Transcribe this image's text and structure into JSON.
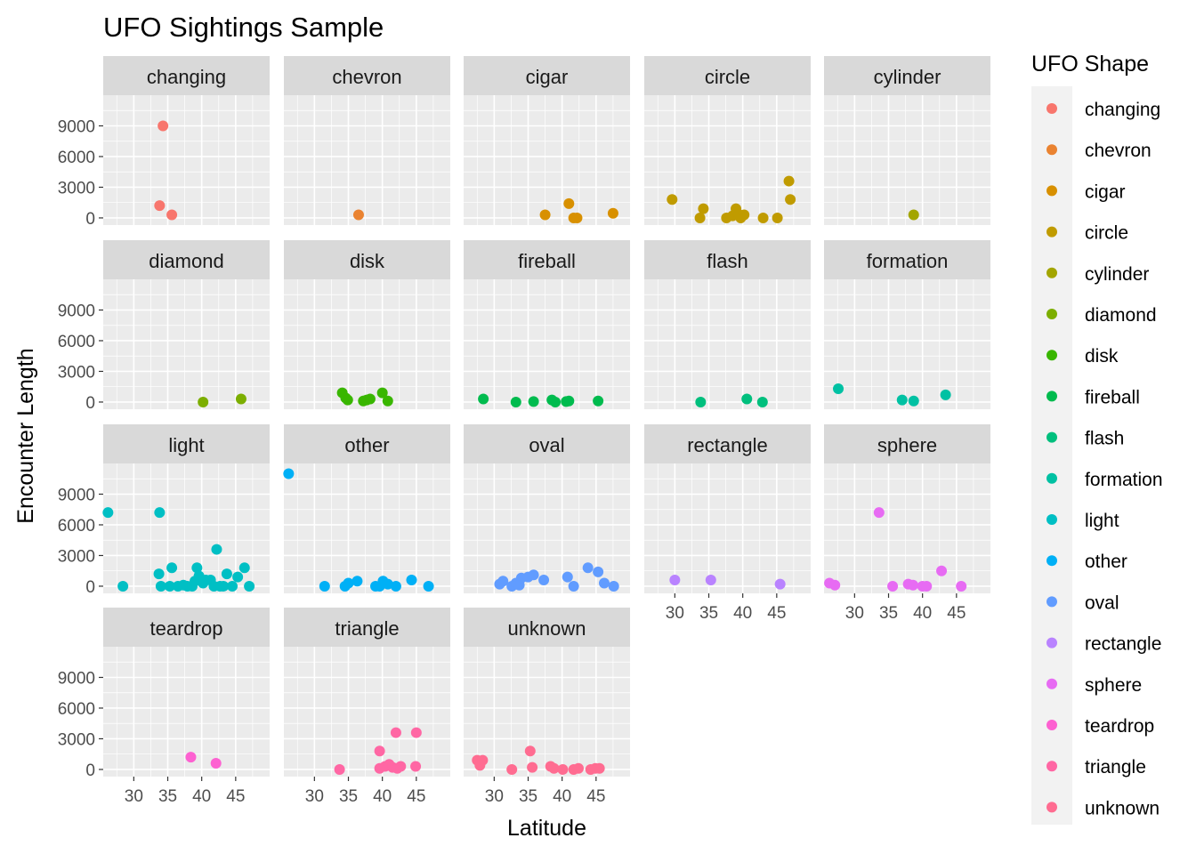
{
  "chart_data": {
    "type": "scatter",
    "title": "UFO Sightings Sample",
    "xlabel": "Latitude",
    "ylabel": "Encounter Length",
    "xlim": [
      25.5,
      50.0
    ],
    "ylim": [
      -700,
      12000
    ],
    "x_ticks": [
      30,
      35,
      40,
      45
    ],
    "y_ticks": [
      0,
      3000,
      6000,
      9000
    ],
    "x_tick_labels": [
      "30",
      "35",
      "40",
      "45"
    ],
    "y_tick_labels": [
      "0",
      "3000",
      "6000",
      "9000"
    ],
    "grid": true,
    "facet_by": "shape",
    "facet_columns": 5,
    "legend": {
      "title": "UFO Shape",
      "position": "right"
    },
    "series": [
      {
        "name": "changing",
        "color": "#F8766D",
        "points": [
          [
            34.3,
            9000
          ],
          [
            33.8,
            1200
          ],
          [
            35.6,
            300
          ]
        ]
      },
      {
        "name": "chevron",
        "color": "#EA8331",
        "points": [
          [
            36.5,
            300
          ]
        ]
      },
      {
        "name": "cigar",
        "color": "#D89000",
        "points": [
          [
            37.5,
            300
          ],
          [
            41.0,
            1400
          ],
          [
            41.7,
            0
          ],
          [
            42.2,
            0
          ],
          [
            47.5,
            450
          ]
        ]
      },
      {
        "name": "circle",
        "color": "#C09B00",
        "points": [
          [
            29.6,
            1800
          ],
          [
            33.7,
            0
          ],
          [
            34.2,
            900
          ],
          [
            37.6,
            0
          ],
          [
            38.5,
            200
          ],
          [
            39.0,
            900
          ],
          [
            39.3,
            400
          ],
          [
            39.7,
            0
          ],
          [
            40.2,
            300
          ],
          [
            43.0,
            0
          ],
          [
            45.1,
            0
          ],
          [
            46.8,
            3600
          ],
          [
            47.0,
            1800
          ]
        ]
      },
      {
        "name": "cylinder",
        "color": "#A3A500",
        "points": [
          [
            38.7,
            300
          ]
        ]
      },
      {
        "name": "diamond",
        "color": "#7CAE00",
        "points": [
          [
            40.2,
            0
          ],
          [
            45.8,
            300
          ]
        ]
      },
      {
        "name": "disk",
        "color": "#39B600",
        "points": [
          [
            34.1,
            900
          ],
          [
            34.6,
            400
          ],
          [
            34.9,
            200
          ],
          [
            37.2,
            100
          ],
          [
            37.7,
            200
          ],
          [
            38.2,
            300
          ],
          [
            40.0,
            900
          ],
          [
            40.8,
            100
          ]
        ]
      },
      {
        "name": "fireball",
        "color": "#00BB4E",
        "points": [
          [
            28.4,
            300
          ],
          [
            33.2,
            0
          ],
          [
            35.8,
            50
          ],
          [
            38.5,
            200
          ],
          [
            39.0,
            0
          ],
          [
            40.6,
            50
          ],
          [
            41.0,
            100
          ],
          [
            45.3,
            100
          ]
        ]
      },
      {
        "name": "flash",
        "color": "#00BF7D",
        "points": [
          [
            33.8,
            0
          ],
          [
            40.6,
            300
          ],
          [
            42.9,
            0
          ]
        ]
      },
      {
        "name": "formation",
        "color": "#00C1A3",
        "points": [
          [
            27.6,
            1300
          ],
          [
            37.0,
            200
          ],
          [
            38.7,
            100
          ],
          [
            43.4,
            700
          ]
        ]
      },
      {
        "name": "light",
        "color": "#00BFC4",
        "points": [
          [
            26.2,
            7200
          ],
          [
            28.4,
            0
          ],
          [
            33.8,
            7200
          ],
          [
            33.7,
            1200
          ],
          [
            34.0,
            0
          ],
          [
            35.3,
            0
          ],
          [
            35.6,
            1800
          ],
          [
            36.5,
            0
          ],
          [
            37.3,
            100
          ],
          [
            37.9,
            0
          ],
          [
            38.6,
            0
          ],
          [
            39.0,
            500
          ],
          [
            39.3,
            1800
          ],
          [
            39.6,
            1000
          ],
          [
            40.2,
            300
          ],
          [
            40.6,
            600
          ],
          [
            41.3,
            600
          ],
          [
            41.8,
            0
          ],
          [
            42.2,
            3600
          ],
          [
            42.7,
            0
          ],
          [
            43.2,
            0
          ],
          [
            43.7,
            1200
          ],
          [
            44.5,
            0
          ],
          [
            45.3,
            900
          ],
          [
            46.3,
            1800
          ],
          [
            47.0,
            0
          ]
        ]
      },
      {
        "name": "other",
        "color": "#00B0F6",
        "points": [
          [
            26.2,
            11000
          ],
          [
            31.5,
            0
          ],
          [
            34.5,
            0
          ],
          [
            35.0,
            300
          ],
          [
            36.3,
            500
          ],
          [
            39.0,
            0
          ],
          [
            39.6,
            0
          ],
          [
            40.1,
            500
          ],
          [
            40.8,
            200
          ],
          [
            42.0,
            0
          ],
          [
            44.3,
            600
          ],
          [
            46.8,
            0
          ]
        ]
      },
      {
        "name": "oval",
        "color": "#619CFF",
        "points": [
          [
            30.8,
            200
          ],
          [
            31.3,
            500
          ],
          [
            32.6,
            0
          ],
          [
            33.2,
            300
          ],
          [
            33.7,
            100
          ],
          [
            34.0,
            800
          ],
          [
            35.0,
            900
          ],
          [
            35.8,
            1100
          ],
          [
            37.3,
            600
          ],
          [
            40.8,
            900
          ],
          [
            41.7,
            0
          ],
          [
            43.8,
            1800
          ],
          [
            45.3,
            1400
          ],
          [
            46.2,
            300
          ],
          [
            47.6,
            0
          ]
        ]
      },
      {
        "name": "rectangle",
        "color": "#B983FF",
        "points": [
          [
            30.0,
            600
          ],
          [
            35.3,
            600
          ],
          [
            45.5,
            200
          ]
        ]
      },
      {
        "name": "sphere",
        "color": "#E76BF3",
        "points": [
          [
            26.3,
            300
          ],
          [
            27.1,
            100
          ],
          [
            33.6,
            7200
          ],
          [
            35.6,
            0
          ],
          [
            37.9,
            200
          ],
          [
            38.6,
            100
          ],
          [
            40.0,
            0
          ],
          [
            40.6,
            0
          ],
          [
            42.8,
            1500
          ],
          [
            45.7,
            0
          ]
        ]
      },
      {
        "name": "teardrop",
        "color": "#FD61D1",
        "points": [
          [
            38.4,
            1200
          ],
          [
            42.1,
            600
          ]
        ]
      },
      {
        "name": "triangle",
        "color": "#FF67A4",
        "points": [
          [
            33.7,
            0
          ],
          [
            39.6,
            1800
          ],
          [
            39.6,
            100
          ],
          [
            40.4,
            300
          ],
          [
            41.0,
            500
          ],
          [
            41.5,
            200
          ],
          [
            42.0,
            3600
          ],
          [
            42.2,
            100
          ],
          [
            42.7,
            300
          ],
          [
            45.0,
            3600
          ],
          [
            44.9,
            300
          ]
        ]
      },
      {
        "name": "unknown",
        "color": "#FF6C91",
        "points": [
          [
            27.5,
            900
          ],
          [
            27.9,
            400
          ],
          [
            28.3,
            900
          ],
          [
            32.6,
            0
          ],
          [
            35.3,
            1800
          ],
          [
            35.6,
            200
          ],
          [
            38.3,
            300
          ],
          [
            38.8,
            100
          ],
          [
            40.1,
            0
          ],
          [
            41.7,
            0
          ],
          [
            42.4,
            100
          ],
          [
            44.2,
            0
          ],
          [
            44.9,
            100
          ],
          [
            45.5,
            100
          ]
        ]
      }
    ]
  }
}
